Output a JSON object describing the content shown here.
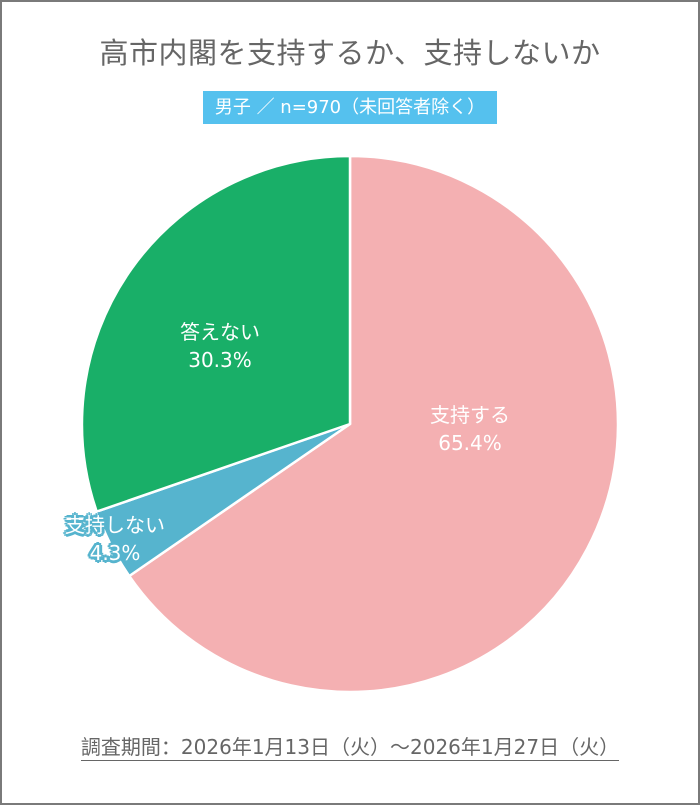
{
  "title": "高市内閣を支持するか、支持しないか",
  "subtitle": "男子 ／ n=970（未回答者除く）",
  "footer": "調査期間：2026年1月13日（火）～2026年1月27日（火）",
  "colors": {
    "support": "#F4B0B2",
    "not_support": "#56B4CE",
    "no_answer": "#19AF68",
    "badge": "#55C1EE",
    "title_text": "#666666"
  },
  "slices": [
    {
      "label": "支持する",
      "value_text": "65.4%"
    },
    {
      "label": "支持しない",
      "value_text": "4.3%"
    },
    {
      "label": "答えない",
      "value_text": "30.3%"
    }
  ],
  "chart_data": {
    "type": "pie",
    "title": "高市内閣を支持するか、支持しないか",
    "subtitle": "男子 ／ n=970（未回答者除く）",
    "categories": [
      "支持する",
      "支持しない",
      "答えない"
    ],
    "values": [
      65.4,
      4.3,
      30.3
    ],
    "unit": "%",
    "colors": [
      "#F4B0B2",
      "#56B4CE",
      "#19AF68"
    ],
    "start_angle": "12 o'clock, clockwise",
    "legend": "none (labels inside slices)",
    "note": "調査期間：2026年1月13日（火）～2026年1月27日（火）"
  }
}
